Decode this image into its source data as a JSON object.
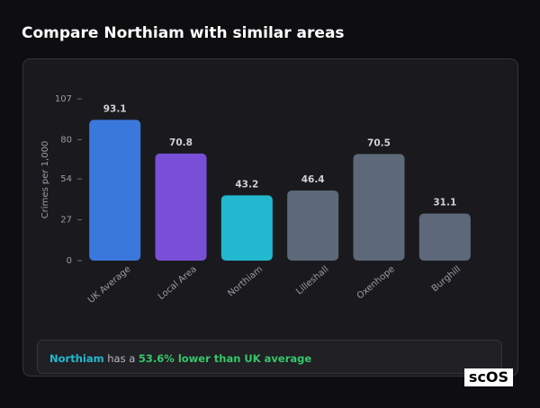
{
  "header": {
    "title": "Compare Northiam with similar areas"
  },
  "chart_data": {
    "type": "bar",
    "y_label": "Crimes per 1,000",
    "categories": [
      "UK Average",
      "Local Area",
      "Northiam",
      "Lilleshall",
      "Oxenhope",
      "Burghill"
    ],
    "values": [
      93.1,
      70.8,
      43.2,
      46.4,
      70.5,
      31.1
    ],
    "colors": [
      "#3b78dc",
      "#7a4fd8",
      "#22b9d0",
      "#5d6879",
      "#5d6879",
      "#5d6879"
    ],
    "ylim": [
      0,
      107
    ],
    "yticks": [
      0,
      27,
      54,
      80,
      107
    ]
  },
  "summary": {
    "area": "Northiam",
    "text": "has a",
    "highlight": "53.6% lower than UK average"
  },
  "logo": "scOS"
}
